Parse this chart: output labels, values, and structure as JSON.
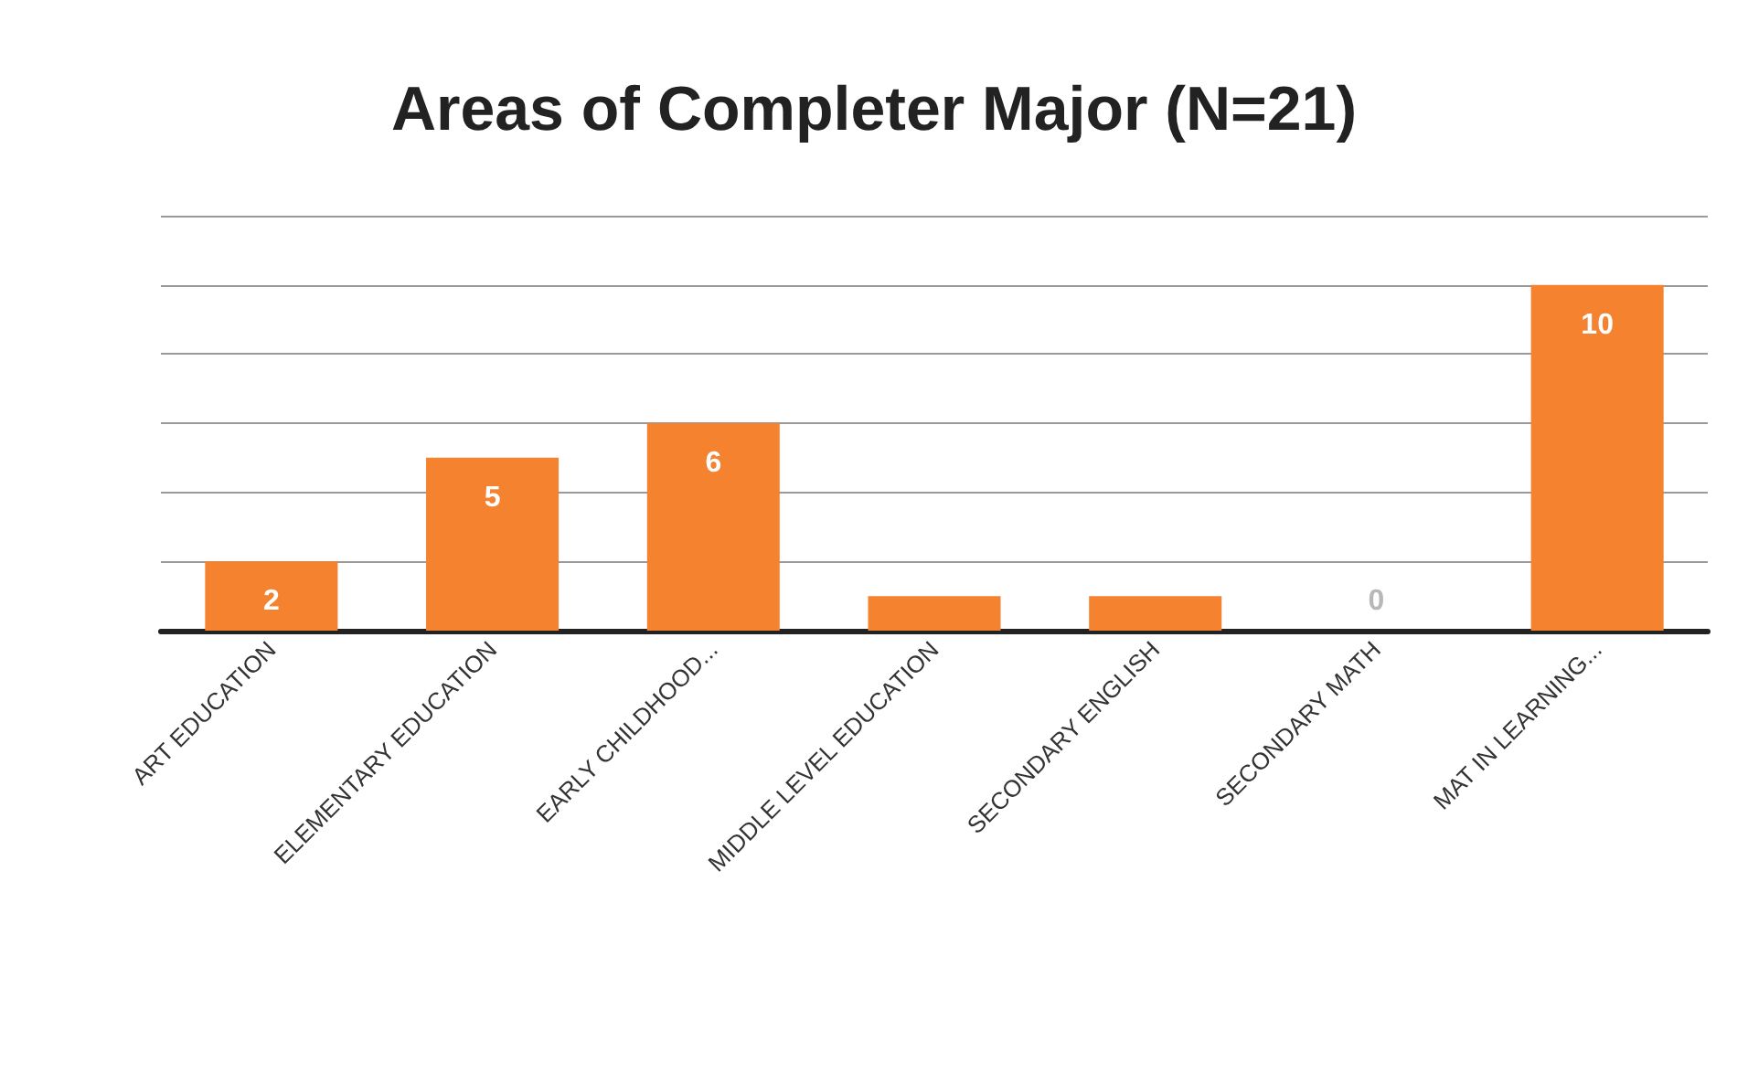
{
  "chart_data": {
    "type": "bar",
    "title": "Areas of Completer Major (N=21)",
    "categories": [
      "ART EDUCATION",
      "ELEMENTARY EDUCATION",
      "EARLY CHILDHOOD...",
      "MIDDLE LEVEL EDUCATION",
      "SECONDARY ENGLISH",
      "SECONDARY MATH",
      "MAT IN LEARNING..."
    ],
    "values": [
      2,
      5,
      6,
      1,
      1,
      0,
      10
    ],
    "value_labels": [
      "2",
      "5",
      "6",
      null,
      null,
      "0",
      "10"
    ],
    "color": "#f4822f",
    "ylim": [
      0,
      12
    ],
    "yticks": [
      {
        "value": 0,
        "label": null
      },
      {
        "value": 2,
        "label": null
      },
      {
        "value": 4,
        "label": null
      },
      {
        "value": 6,
        "label": null
      },
      {
        "value": 8,
        "label": null
      },
      {
        "value": 10,
        "label": null
      },
      {
        "value": 12,
        "label": null
      }
    ],
    "tick_labels": "x",
    "grid": true
  }
}
